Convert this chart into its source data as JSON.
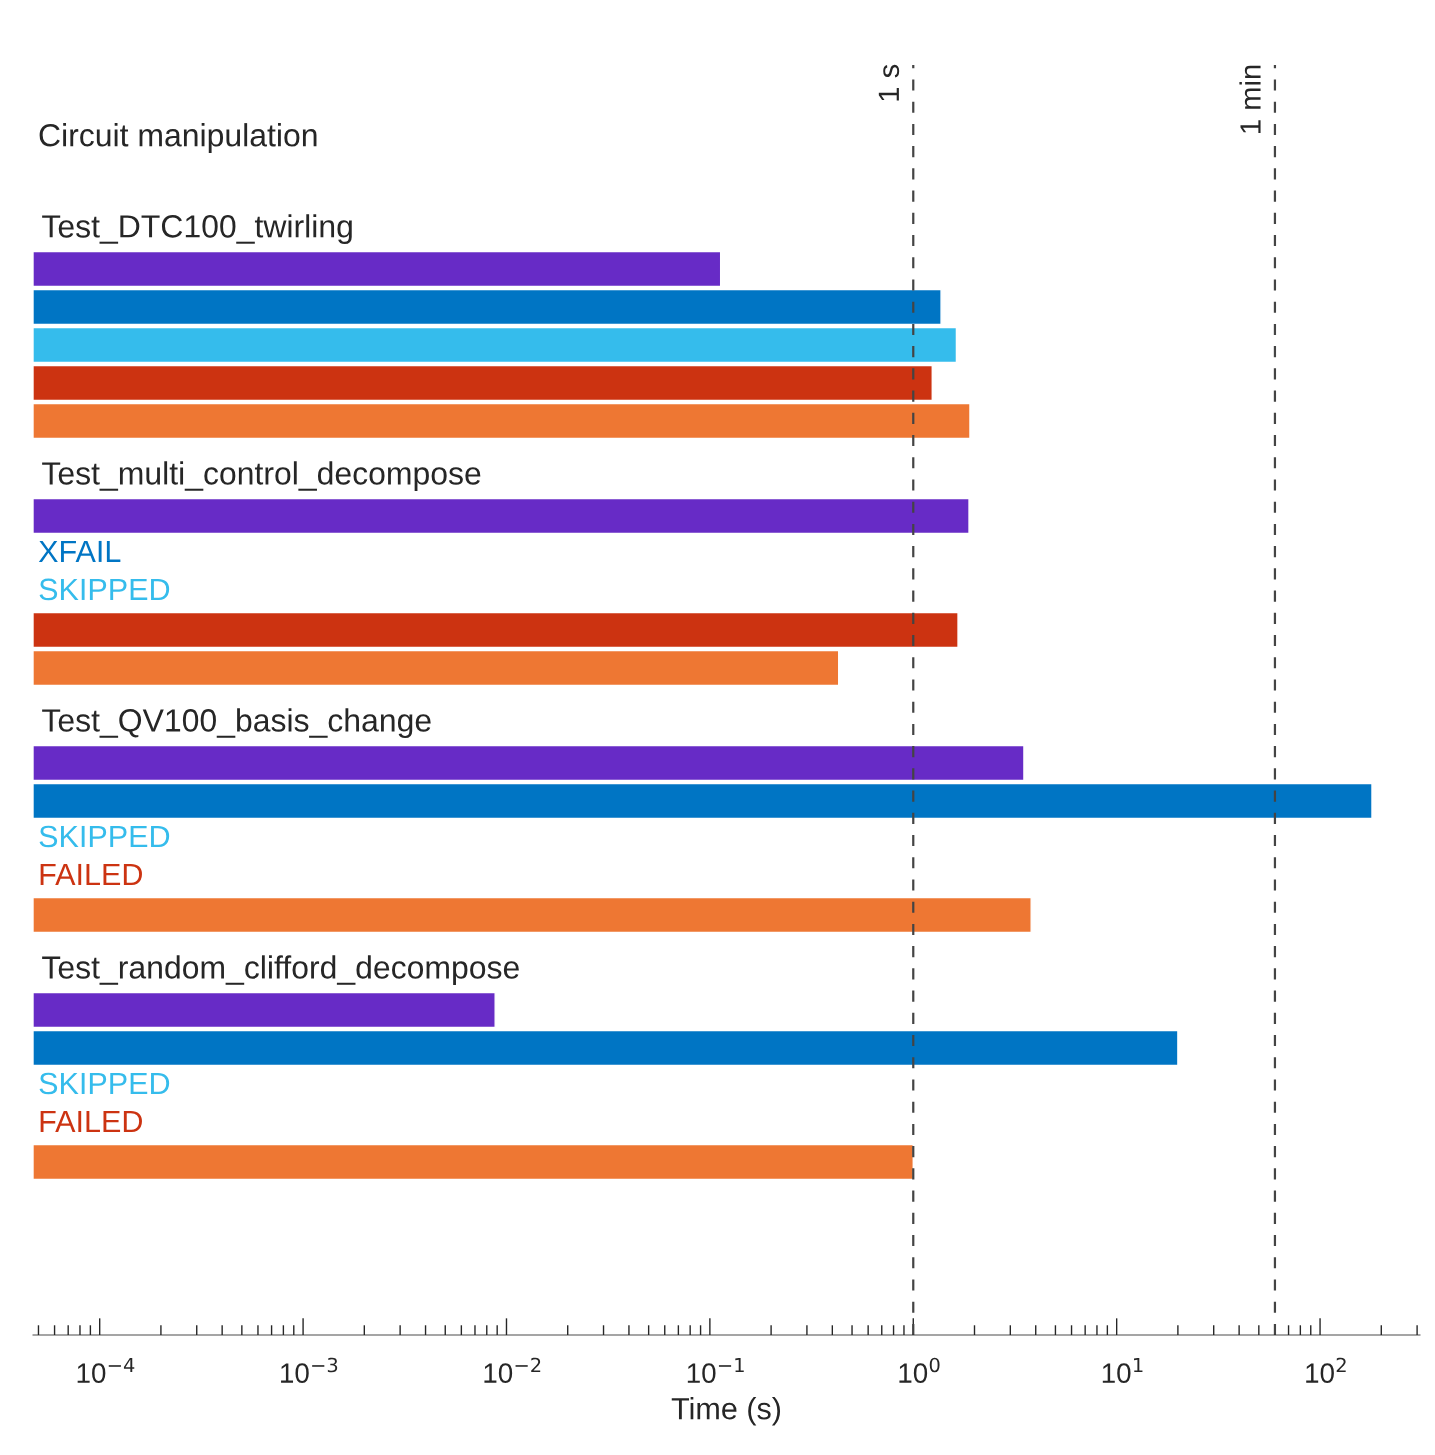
{
  "chart_data": {
    "type": "bar",
    "orientation": "horizontal",
    "title": "Circuit manipulation",
    "xlabel": "Time (s)",
    "log": "x",
    "categories": [
      "Test_DTC100_twirling",
      "Test_multi_control_decompose",
      "Test_QV100_basis_change",
      "Test_random_clifford_decompose"
    ],
    "series": [
      {
        "color": "#672bc6",
        "values": [
          0.113,
          1.88,
          3.5,
          0.0088
        ]
      },
      {
        "color": "#0075c4",
        "values": [
          1.37,
          null,
          180,
          20
        ],
        "value_labels": [
          null,
          "XFAIL",
          null,
          null
        ]
      },
      {
        "color": "#35bcec",
        "values": [
          1.63,
          null,
          null,
          null
        ],
        "value_labels": [
          null,
          "SKIPPED",
          "SKIPPED",
          "SKIPPED"
        ]
      },
      {
        "color": "#cc3311",
        "values": [
          1.24,
          1.66,
          null,
          null
        ],
        "value_labels": [
          null,
          null,
          "FAILED",
          "FAILED"
        ]
      },
      {
        "color": "#ee7733",
        "values": [
          1.9,
          0.43,
          3.8,
          1.0
        ]
      }
    ],
    "xlim": [
      4.7e-05,
      310
    ],
    "xticks": [
      {
        "value": 0.0001,
        "label": "10$^{−4}$"
      },
      {
        "value": 0.001,
        "label": "10$^{−3}$"
      },
      {
        "value": 0.01,
        "label": "10$^{−2}$"
      },
      {
        "value": 0.1,
        "label": "10$^{−1}$"
      },
      {
        "value": 1,
        "label": "10$^{0}$"
      },
      {
        "value": 10,
        "label": "10$^{1}$"
      },
      {
        "value": 100,
        "label": "10$^{2}$"
      }
    ],
    "ref_lines": [
      {
        "axis": "x",
        "value": 1,
        "label": "1 s",
        "color": "#444444",
        "line_style": "dashed"
      },
      {
        "axis": "x",
        "value": 60,
        "label": "1 min",
        "color": "#444444",
        "line_style": "dashed"
      }
    ],
    "grid": false,
    "legend": false
  }
}
